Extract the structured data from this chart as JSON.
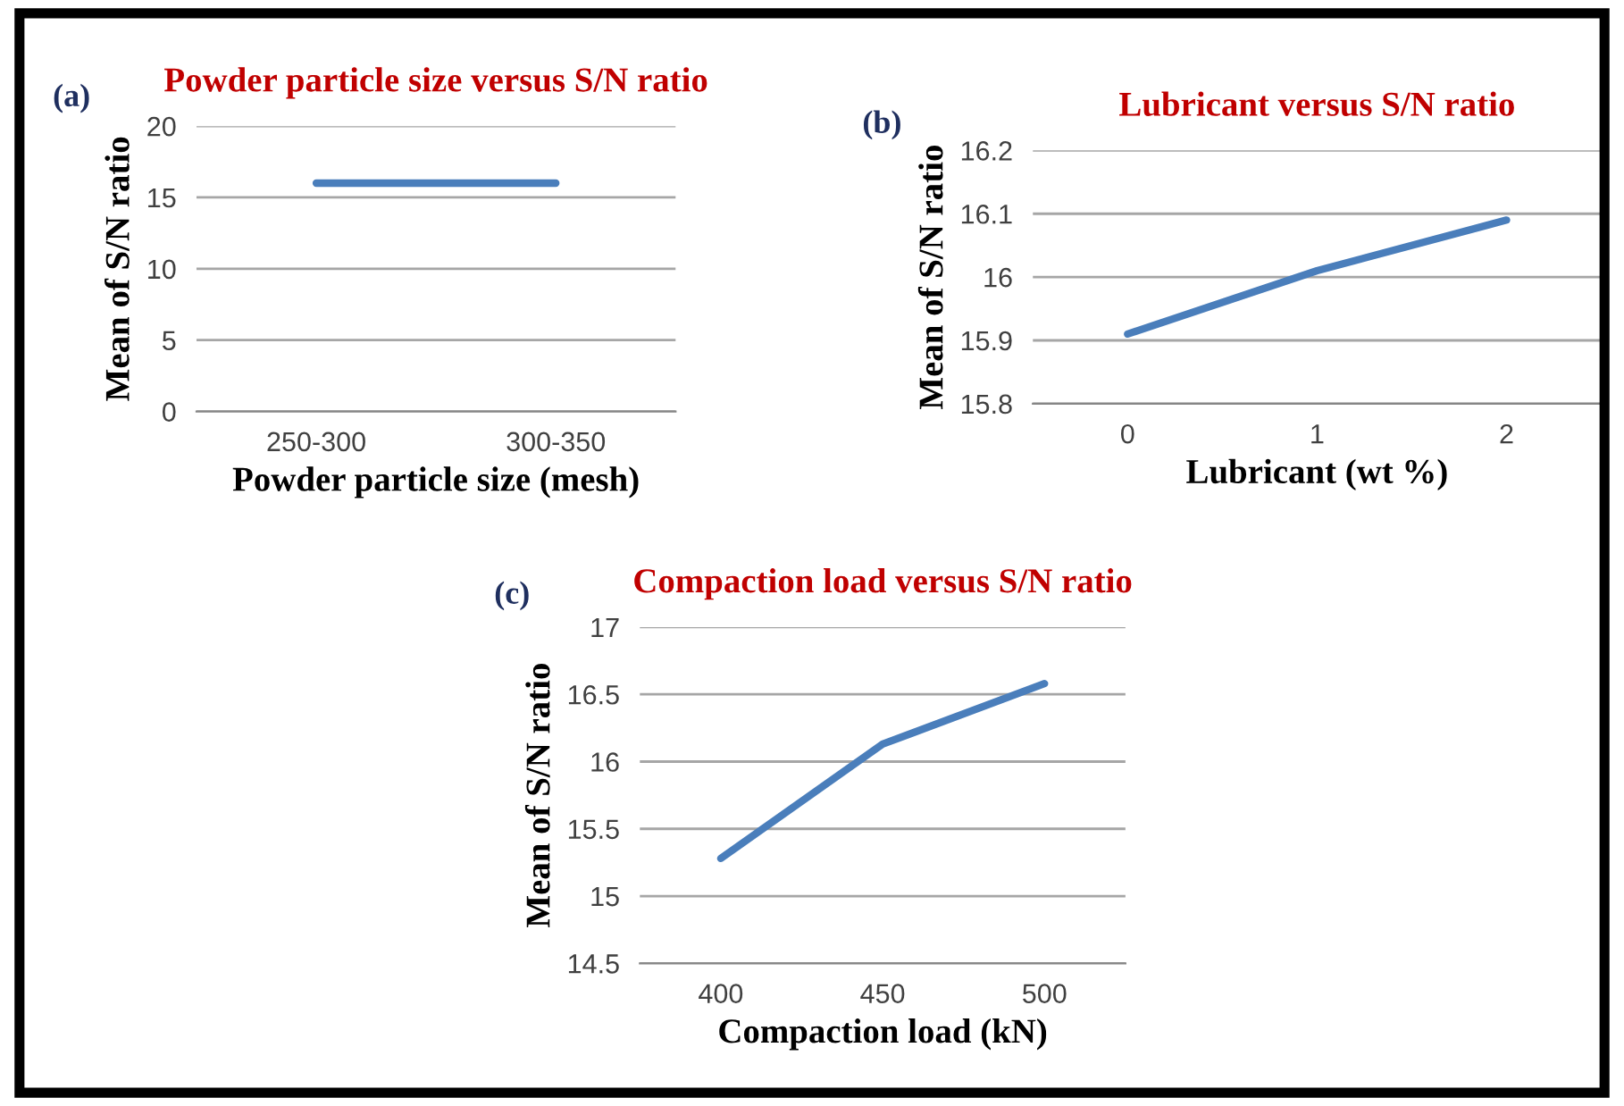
{
  "chart_data": [
    {
      "type": "line",
      "title": "Powder particle size versus S/N ratio",
      "annotations": [
        "(a)"
      ],
      "xlabel": "Powder particle size (mesh)",
      "ylabel": "Mean of S/N ratio",
      "categories": [
        "250-300",
        "300-350"
      ],
      "series": [
        {
          "color": "#4a7ebb",
          "values": [
            16,
            16
          ]
        }
      ],
      "ylim": [
        0,
        20
      ],
      "yticks": [
        0,
        5,
        10,
        15,
        20
      ],
      "grid": "y",
      "marker": "none",
      "line_style": "solid"
    },
    {
      "type": "line",
      "title": "Lubricant versus S/N ratio",
      "annotations": [
        "(b)"
      ],
      "xlabel": "Lubricant (wt %)",
      "ylabel": "Mean of S/N ratio",
      "categories": [
        "0",
        "1",
        "2"
      ],
      "series": [
        {
          "color": "#4a7ebb",
          "values": [
            15.91,
            16.01,
            16.09
          ]
        }
      ],
      "ylim": [
        15.8,
        16.2
      ],
      "yticks": [
        15.8,
        15.9,
        16,
        16.1,
        16.2
      ],
      "grid": "y",
      "marker": "none",
      "line_style": "solid"
    },
    {
      "type": "line",
      "title": "Compaction load versus S/N ratio",
      "annotations": [
        "(c)"
      ],
      "xlabel": "Compaction load (kN)",
      "ylabel": "Mean of S/N ratio",
      "categories": [
        "400",
        "450",
        "500"
      ],
      "series": [
        {
          "color": "#4a7ebb",
          "values": [
            15.28,
            16.13,
            16.58
          ]
        }
      ],
      "ylim": [
        14.5,
        17
      ],
      "yticks": [
        14.5,
        15,
        15.5,
        16,
        16.5,
        17
      ],
      "grid": "y",
      "marker": "none",
      "line_style": "solid"
    }
  ]
}
